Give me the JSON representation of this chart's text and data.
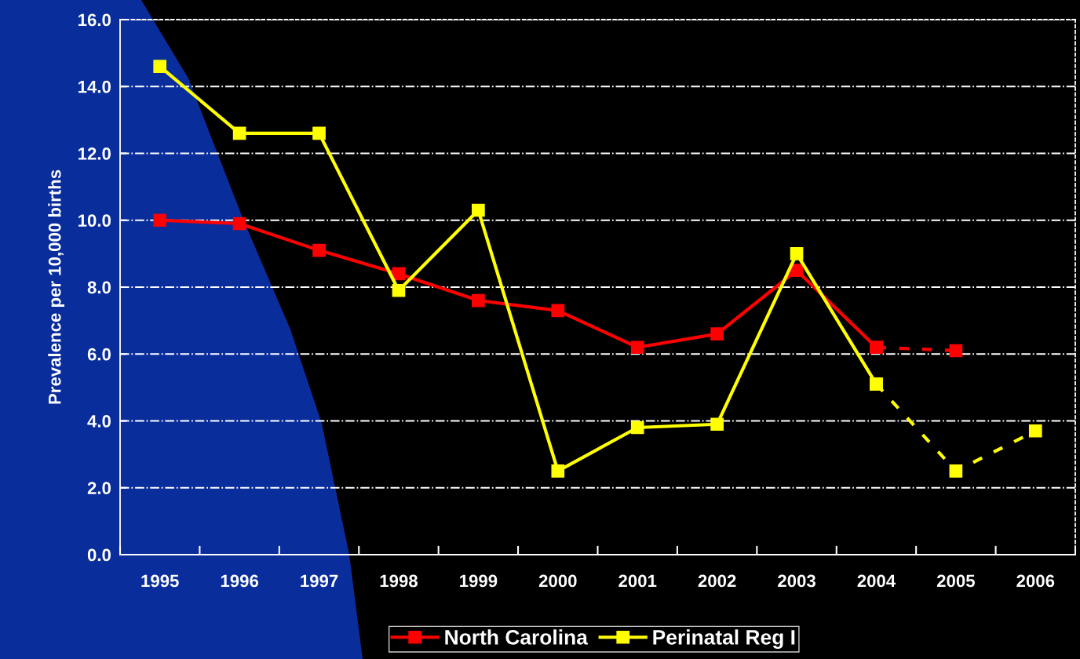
{
  "chart_data": {
    "type": "line",
    "ylabel": "Prevalence per 10,000 births",
    "categories": [
      "1995",
      "1996",
      "1997",
      "1998",
      "1999",
      "2000",
      "2001",
      "2002",
      "2003",
      "2004",
      "2005",
      "2006"
    ],
    "series": [
      {
        "name": "North Carolina",
        "color": "#ff0000",
        "marker": "square",
        "line_style": "solid",
        "values": [
          10.0,
          9.9,
          9.1,
          8.4,
          7.6,
          7.3,
          6.2,
          6.6,
          8.5,
          6.2,
          null,
          null
        ]
      },
      {
        "name": "Perinatal Reg I",
        "color": "#ffff00",
        "marker": "square",
        "line_style": "solid",
        "values": [
          14.6,
          12.6,
          12.6,
          7.9,
          10.3,
          2.5,
          3.8,
          3.9,
          9.0,
          5.1,
          null,
          null
        ]
      },
      {
        "color": "#ff0000",
        "marker": "square",
        "line_style": "dashed",
        "values": [
          null,
          null,
          null,
          null,
          null,
          null,
          null,
          null,
          null,
          6.2,
          6.1,
          null
        ]
      },
      {
        "color": "#ffff00",
        "marker": "square",
        "line_style": "dashed",
        "values": [
          null,
          null,
          null,
          null,
          null,
          null,
          null,
          null,
          null,
          5.1,
          2.5,
          3.7
        ]
      }
    ],
    "ylim": [
      0,
      16
    ],
    "yticks": [
      {
        "value": 0,
        "label": "0.0"
      },
      {
        "value": 2,
        "label": "2.0"
      },
      {
        "value": 4,
        "label": "4.0"
      },
      {
        "value": 6,
        "label": "6.0"
      },
      {
        "value": 8,
        "label": "8.0"
      },
      {
        "value": 10,
        "label": "10.0"
      },
      {
        "value": 12,
        "label": "12.0"
      },
      {
        "value": 14,
        "label": "14.0"
      },
      {
        "value": 16,
        "label": "16.0"
      }
    ],
    "grid": "y",
    "legend": "bottom"
  }
}
